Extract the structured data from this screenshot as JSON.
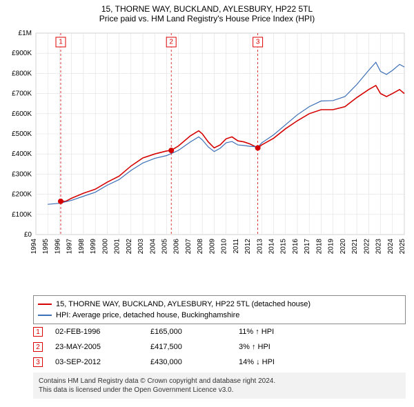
{
  "title": {
    "line1": "15, THORNE WAY, BUCKLAND, AYLESBURY, HP22 5TL",
    "line2": "Price paid vs. HM Land Registry's House Price Index (HPI)"
  },
  "chart": {
    "type": "line",
    "background_color": "#ffffff",
    "grid_color": "#e0e0e0",
    "axis_color": "#999999",
    "x": {
      "min": 1994,
      "max": 2025,
      "ticks": [
        1994,
        1995,
        1996,
        1997,
        1998,
        1999,
        2000,
        2001,
        2002,
        2003,
        2004,
        2005,
        2006,
        2007,
        2008,
        2009,
        2010,
        2011,
        2012,
        2013,
        2014,
        2015,
        2016,
        2017,
        2018,
        2019,
        2020,
        2021,
        2022,
        2023,
        2024,
        2025
      ],
      "tick_label_fontsize": 10,
      "tick_label_rotation": -90
    },
    "y": {
      "min": 0,
      "max": 1000000,
      "ticks": [
        0,
        100000,
        200000,
        300000,
        400000,
        500000,
        600000,
        700000,
        800000,
        900000,
        1000000
      ],
      "tick_labels": [
        "£0",
        "£100K",
        "£200K",
        "£300K",
        "£400K",
        "£500K",
        "£600K",
        "£700K",
        "£800K",
        "£900K",
        "£1M"
      ],
      "tick_label_fontsize": 10
    },
    "series": [
      {
        "id": "price_paid",
        "label": "15, THORNE WAY, BUCKLAND, AYLESBURY, HP22 5TL (detached house)",
        "color": "#d50000",
        "line_width": 1.6,
        "points": [
          [
            1996.09,
            165000
          ],
          [
            1996.5,
            165000
          ],
          [
            1997,
            180000
          ],
          [
            1998,
            205000
          ],
          [
            1999,
            225000
          ],
          [
            2000,
            260000
          ],
          [
            2001,
            290000
          ],
          [
            2002,
            340000
          ],
          [
            2003,
            380000
          ],
          [
            2004,
            400000
          ],
          [
            2005,
            415000
          ],
          [
            2005.39,
            417500
          ],
          [
            2006,
            440000
          ],
          [
            2007,
            490000
          ],
          [
            2007.7,
            515000
          ],
          [
            2008,
            500000
          ],
          [
            2008.5,
            460000
          ],
          [
            2009,
            430000
          ],
          [
            2009.5,
            445000
          ],
          [
            2010,
            475000
          ],
          [
            2010.5,
            485000
          ],
          [
            2011,
            465000
          ],
          [
            2011.5,
            460000
          ],
          [
            2012,
            450000
          ],
          [
            2012.67,
            430000
          ],
          [
            2013,
            445000
          ],
          [
            2014,
            478000
          ],
          [
            2015,
            525000
          ],
          [
            2016,
            565000
          ],
          [
            2017,
            600000
          ],
          [
            2018,
            620000
          ],
          [
            2019,
            620000
          ],
          [
            2020,
            635000
          ],
          [
            2021,
            680000
          ],
          [
            2022,
            720000
          ],
          [
            2022.6,
            740000
          ],
          [
            2023,
            700000
          ],
          [
            2023.5,
            685000
          ],
          [
            2024,
            700000
          ],
          [
            2024.6,
            720000
          ],
          [
            2025,
            700000
          ]
        ]
      },
      {
        "id": "hpi",
        "label": "HPI: Average price, detached house, Buckinghamshire",
        "color": "#3b6fb6",
        "line_width": 1.2,
        "points": [
          [
            1995,
            150000
          ],
          [
            1996,
            155000
          ],
          [
            1997,
            170000
          ],
          [
            1998,
            190000
          ],
          [
            1999,
            210000
          ],
          [
            2000,
            245000
          ],
          [
            2001,
            273000
          ],
          [
            2002,
            318000
          ],
          [
            2003,
            355000
          ],
          [
            2004,
            378000
          ],
          [
            2005,
            392000
          ],
          [
            2006,
            418000
          ],
          [
            2007,
            460000
          ],
          [
            2007.7,
            485000
          ],
          [
            2008,
            470000
          ],
          [
            2008.5,
            435000
          ],
          [
            2009,
            412000
          ],
          [
            2009.5,
            428000
          ],
          [
            2010,
            455000
          ],
          [
            2010.5,
            462000
          ],
          [
            2011,
            445000
          ],
          [
            2011.5,
            442000
          ],
          [
            2012,
            438000
          ],
          [
            2012.7,
            435000
          ],
          [
            2013,
            455000
          ],
          [
            2014,
            495000
          ],
          [
            2015,
            545000
          ],
          [
            2016,
            595000
          ],
          [
            2017,
            635000
          ],
          [
            2018,
            663000
          ],
          [
            2019,
            665000
          ],
          [
            2020,
            685000
          ],
          [
            2021,
            745000
          ],
          [
            2022,
            815000
          ],
          [
            2022.6,
            855000
          ],
          [
            2023,
            810000
          ],
          [
            2023.5,
            795000
          ],
          [
            2024,
            815000
          ],
          [
            2024.6,
            845000
          ],
          [
            2025,
            832000
          ]
        ]
      }
    ],
    "event_markers": [
      {
        "n": "1",
        "x": 1996.09,
        "y": 165000,
        "line_color": "#d50000",
        "dash": "3,3"
      },
      {
        "n": "2",
        "x": 2005.39,
        "y": 417500,
        "line_color": "#d50000",
        "dash": "3,3"
      },
      {
        "n": "3",
        "x": 2012.67,
        "y": 430000,
        "line_color": "#d50000",
        "dash": "3,3"
      }
    ],
    "marker_dot_color": "#d50000",
    "marker_dot_radius": 4
  },
  "legend": {
    "border_color": "#888888",
    "rows": [
      {
        "color": "#d50000",
        "label": "15, THORNE WAY, BUCKLAND, AYLESBURY, HP22 5TL (detached house)"
      },
      {
        "color": "#3b6fb6",
        "label": "HPI: Average price, detached house, Buckinghamshire"
      }
    ]
  },
  "events": [
    {
      "n": "1",
      "date": "02-FEB-1996",
      "price": "£165,000",
      "delta": "11% ↑ HPI"
    },
    {
      "n": "2",
      "date": "23-MAY-2005",
      "price": "£417,500",
      "delta": "3% ↑ HPI"
    },
    {
      "n": "3",
      "date": "03-SEP-2012",
      "price": "£430,000",
      "delta": "14% ↓ HPI"
    }
  ],
  "attribution": {
    "line1": "Contains HM Land Registry data © Crown copyright and database right 2024.",
    "line2": "This data is licensed under the Open Government Licence v3.0."
  }
}
